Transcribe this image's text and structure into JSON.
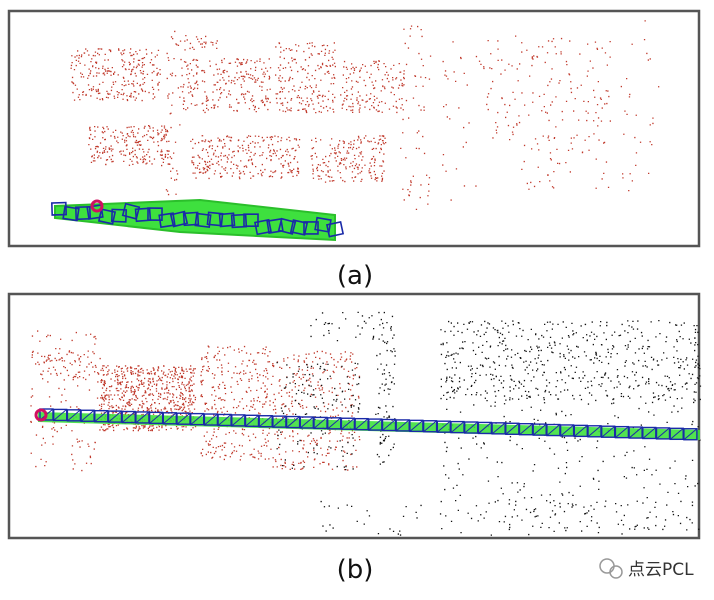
{
  "panels": [
    {
      "label": "(a)"
    },
    {
      "label": "(b)"
    }
  ],
  "watermark": "点云PCL"
}
